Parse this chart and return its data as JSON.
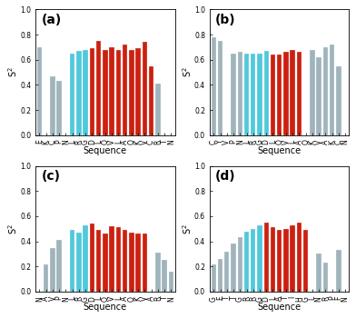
{
  "panels": [
    {
      "label": "(a)",
      "sequences": [
        "E",
        "K",
        "C",
        "P",
        "N",
        "L",
        "R",
        "G",
        "D",
        "L",
        "Q",
        "V",
        "L",
        "A",
        "Q",
        "K",
        "V",
        "C",
        "R",
        "T",
        "N"
      ],
      "values": [
        0.7,
        0.0,
        0.47,
        0.43,
        0.0,
        0.65,
        0.67,
        0.68,
        0.69,
        0.75,
        0.68,
        0.7,
        0.68,
        0.72,
        0.68,
        0.69,
        0.74,
        0.55,
        0.41,
        0.0,
        0.0
      ],
      "colors": [
        "gray",
        "skip",
        "gray",
        "gray",
        "skip",
        "cyan",
        "cyan",
        "cyan",
        "red",
        "red",
        "red",
        "red",
        "red",
        "red",
        "red",
        "red",
        "red",
        "red",
        "gray",
        "skip",
        "skip"
      ]
    },
    {
      "label": "(b)",
      "sequences": [
        "C",
        "Y",
        "V",
        "P",
        "N",
        "L",
        "R",
        "G",
        "D",
        "L",
        "Q",
        "V",
        "L",
        "A",
        "Q",
        "K",
        "V",
        "A",
        "K",
        "C",
        "N"
      ],
      "values": [
        0.78,
        0.75,
        0.0,
        0.65,
        0.66,
        0.65,
        0.65,
        0.65,
        0.67,
        0.64,
        0.64,
        0.66,
        0.68,
        0.66,
        0.0,
        0.68,
        0.62,
        0.7,
        0.72,
        0.55,
        0.0
      ],
      "colors": [
        "gray",
        "gray",
        "skip",
        "gray",
        "gray",
        "cyan",
        "cyan",
        "cyan",
        "cyan",
        "red",
        "red",
        "red",
        "red",
        "red",
        "skip",
        "gray",
        "gray",
        "gray",
        "gray",
        "gray",
        "skip"
      ]
    },
    {
      "label": "(c)",
      "sequences": [
        "N",
        "A",
        "V",
        "P",
        "N",
        "L",
        "R",
        "G",
        "D",
        "L",
        "Q",
        "V",
        "L",
        "A",
        "Q",
        "K",
        "V",
        "A",
        "R",
        "T",
        "N"
      ],
      "values": [
        0.0,
        0.22,
        0.35,
        0.41,
        0.0,
        0.49,
        0.47,
        0.53,
        0.54,
        0.49,
        0.46,
        0.52,
        0.51,
        0.49,
        0.47,
        0.46,
        0.46,
        0.0,
        0.31,
        0.25,
        0.16
      ],
      "colors": [
        "skip",
        "gray",
        "gray",
        "gray",
        "skip",
        "cyan",
        "cyan",
        "cyan",
        "red",
        "red",
        "red",
        "red",
        "red",
        "red",
        "red",
        "red",
        "red",
        "skip",
        "gray",
        "gray",
        "gray"
      ]
    },
    {
      "label": "(d)",
      "sequences": [
        "G",
        "F",
        "T",
        "T",
        "G",
        "R",
        "R",
        "G",
        "D",
        "L",
        "A",
        "T",
        "I",
        "H",
        "G",
        "L",
        "N",
        "R",
        "P",
        "F",
        "N"
      ],
      "values": [
        0.22,
        0.26,
        0.32,
        0.38,
        0.43,
        0.48,
        0.5,
        0.53,
        0.55,
        0.51,
        0.49,
        0.5,
        0.53,
        0.55,
        0.49,
        0.0,
        0.3,
        0.23,
        0.0,
        0.33,
        0.0
      ],
      "colors": [
        "gray",
        "gray",
        "gray",
        "gray",
        "gray",
        "cyan",
        "cyan",
        "cyan",
        "red",
        "red",
        "red",
        "red",
        "red",
        "red",
        "red",
        "skip",
        "gray",
        "gray",
        "skip",
        "gray",
        "skip"
      ]
    }
  ],
  "gray_color": "#a0b4bc",
  "cyan_color": "#50c8dc",
  "red_color": "#cc2010",
  "ylim": [
    0,
    1.0
  ],
  "yticks": [
    0,
    0.2,
    0.4,
    0.6,
    0.8,
    1.0
  ],
  "ylabel": "S$^{2}$",
  "xlabel": "Sequence",
  "bg_color": "#ffffff",
  "label_fontsize": 10,
  "tick_fontsize": 5.5,
  "axis_label_fontsize": 7
}
